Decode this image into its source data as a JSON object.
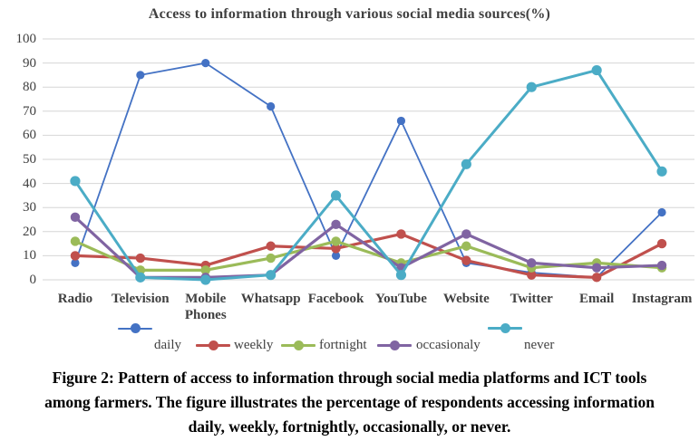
{
  "figure": {
    "caption_lines": [
      "Figure 2: Pattern of access to information through social media platforms and ICT tools",
      "among farmers. The figure illustrates the percentage of respondents accessing information",
      "daily, weekly, fortnightly, occasionally, or never."
    ]
  },
  "chart_data": {
    "type": "line",
    "title": "Access to information through various social media sources(%)",
    "categories": [
      "Radio",
      "Television",
      "Mobile Phones",
      "Whatsapp",
      "Facebook",
      "YouTube",
      "Website",
      "Twitter",
      "Email",
      "Instagram"
    ],
    "ylim": [
      0,
      100
    ],
    "ytick_step": 10,
    "grid": true,
    "legend_position": "bottom",
    "axis_text_color": "#404040",
    "gridline_color": "#D6D6D6",
    "series": [
      {
        "name": "daily",
        "color": "#4472C4",
        "values": [
          7,
          85,
          90,
          72,
          10,
          66,
          7,
          3,
          1,
          28
        ]
      },
      {
        "name": "weekly",
        "color": "#C0504D",
        "values": [
          10,
          9,
          6,
          14,
          13,
          19,
          8,
          2,
          1,
          15
        ]
      },
      {
        "name": "fortnight",
        "color": "#9BBB59",
        "values": [
          16,
          4,
          4,
          9,
          16,
          7,
          14,
          5,
          7,
          5
        ]
      },
      {
        "name": "occasionaly",
        "color": "#8064A2",
        "values": [
          26,
          1,
          1,
          2,
          23,
          5,
          19,
          7,
          5,
          6
        ]
      },
      {
        "name": "never",
        "color": "#4BACC6",
        "values": [
          41,
          1,
          0,
          2,
          35,
          2,
          48,
          80,
          87,
          45
        ]
      }
    ]
  }
}
